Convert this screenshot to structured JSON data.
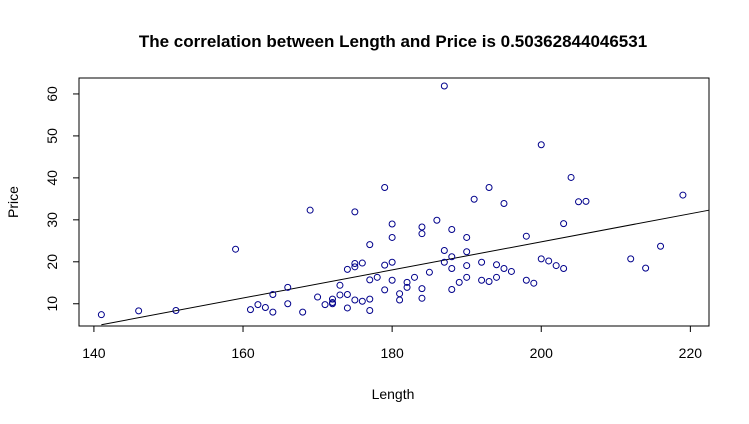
{
  "chart_data": {
    "type": "scatter",
    "title": "The correlation between Length  and  Price  is  0.50362844046531",
    "xlabel": "Length",
    "ylabel": "Price",
    "xlim": [
      138,
      222.5
    ],
    "ylim": [
      4.7,
      63.8
    ],
    "xticks": [
      140,
      160,
      180,
      200,
      220
    ],
    "yticks": [
      10,
      20,
      30,
      40,
      50,
      60
    ],
    "point_color": "#00008B",
    "line_color": "#000000",
    "regression_line": {
      "x": [
        141,
        222.5
      ],
      "y": [
        5.0,
        32.3
      ]
    },
    "points": [
      [
        141,
        7.4
      ],
      [
        146,
        8.3
      ],
      [
        151,
        8.4
      ],
      [
        159,
        23.0
      ],
      [
        161,
        8.6
      ],
      [
        162,
        9.8
      ],
      [
        163,
        9.1
      ],
      [
        164,
        12.2
      ],
      [
        164,
        8.0
      ],
      [
        166,
        13.9
      ],
      [
        166,
        10.0
      ],
      [
        168,
        8.0
      ],
      [
        169,
        32.3
      ],
      [
        170,
        11.6
      ],
      [
        171,
        9.8
      ],
      [
        172,
        11.1
      ],
      [
        172,
        10.3
      ],
      [
        172,
        10.0
      ],
      [
        173,
        12.1
      ],
      [
        173,
        14.4
      ],
      [
        174,
        18.2
      ],
      [
        174,
        12.2
      ],
      [
        174,
        9.0
      ],
      [
        175,
        31.9
      ],
      [
        175,
        19.6
      ],
      [
        175,
        18.8
      ],
      [
        175,
        10.9
      ],
      [
        176,
        19.7
      ],
      [
        176,
        10.6
      ],
      [
        177,
        24.1
      ],
      [
        177,
        15.7
      ],
      [
        177,
        11.1
      ],
      [
        177,
        8.4
      ],
      [
        178,
        16.3
      ],
      [
        179,
        37.7
      ],
      [
        179,
        19.2
      ],
      [
        179,
        13.3
      ],
      [
        180,
        29.0
      ],
      [
        180,
        25.8
      ],
      [
        180,
        19.9
      ],
      [
        180,
        15.6
      ],
      [
        181,
        10.9
      ],
      [
        181,
        12.4
      ],
      [
        182,
        15.1
      ],
      [
        182,
        13.9
      ],
      [
        183,
        16.3
      ],
      [
        184,
        11.3
      ],
      [
        184,
        13.6
      ],
      [
        184,
        26.7
      ],
      [
        184,
        28.3
      ],
      [
        185,
        17.5
      ],
      [
        186,
        29.9
      ],
      [
        187,
        61.9
      ],
      [
        187,
        22.7
      ],
      [
        187,
        19.9
      ],
      [
        188,
        27.7
      ],
      [
        188,
        21.2
      ],
      [
        188,
        18.4
      ],
      [
        188,
        13.4
      ],
      [
        189,
        15.1
      ],
      [
        190,
        25.8
      ],
      [
        190,
        22.4
      ],
      [
        190,
        19.1
      ],
      [
        190,
        16.3
      ],
      [
        191,
        34.9
      ],
      [
        192,
        19.9
      ],
      [
        192,
        15.6
      ],
      [
        193,
        37.7
      ],
      [
        193,
        15.3
      ],
      [
        194,
        19.3
      ],
      [
        194,
        16.3
      ],
      [
        195,
        33.9
      ],
      [
        195,
        18.4
      ],
      [
        196,
        17.7
      ],
      [
        198,
        26.1
      ],
      [
        198,
        15.6
      ],
      [
        199,
        14.9
      ],
      [
        200,
        47.9
      ],
      [
        200,
        20.7
      ],
      [
        201,
        20.2
      ],
      [
        202,
        19.1
      ],
      [
        203,
        29.1
      ],
      [
        203,
        18.4
      ],
      [
        204,
        40.1
      ],
      [
        205,
        34.3
      ],
      [
        206,
        34.4
      ],
      [
        212,
        20.7
      ],
      [
        214,
        18.5
      ],
      [
        216,
        23.7
      ],
      [
        219,
        35.9
      ]
    ]
  }
}
